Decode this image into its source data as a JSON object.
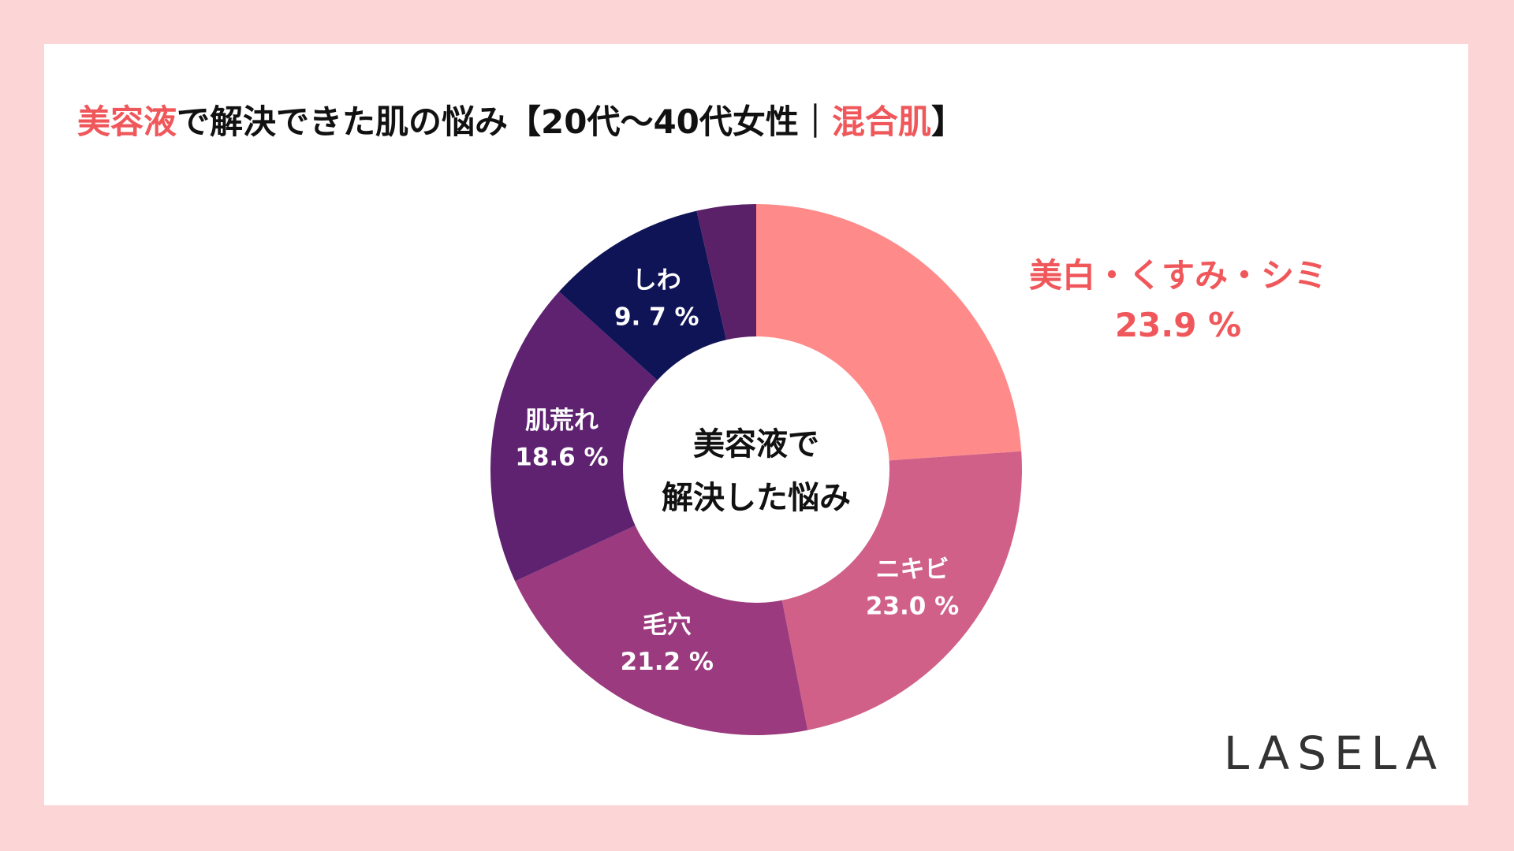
{
  "chart_data": {
    "type": "donut",
    "title_parts": [
      {
        "text": "美容液",
        "color": "#f0575a"
      },
      {
        "text": "で解決できた肌の悩み【20代〜40代女性｜",
        "color": "#111111"
      },
      {
        "text": "混合肌",
        "color": "#f0575a"
      },
      {
        "text": "】",
        "color": "#111111"
      }
    ],
    "center_text": [
      "美容液で",
      "解決した悩み"
    ],
    "categories": [
      "美白・くすみ・シミ",
      "ニキビ",
      "毛穴",
      "肌荒れ",
      "しわ",
      null
    ],
    "values": [
      23.9,
      23.0,
      21.2,
      18.6,
      9.7,
      3.6
    ],
    "value_labels": [
      "23.9 %",
      "23.0 %",
      "21.2 %",
      "18.6 %",
      "9. 7 %",
      null
    ],
    "colors": [
      "#ff8a8a",
      "#d06088",
      "#9b3a7e",
      "#5e2270",
      "#0f1456",
      "#5a2068"
    ],
    "logo": "LASELA"
  }
}
